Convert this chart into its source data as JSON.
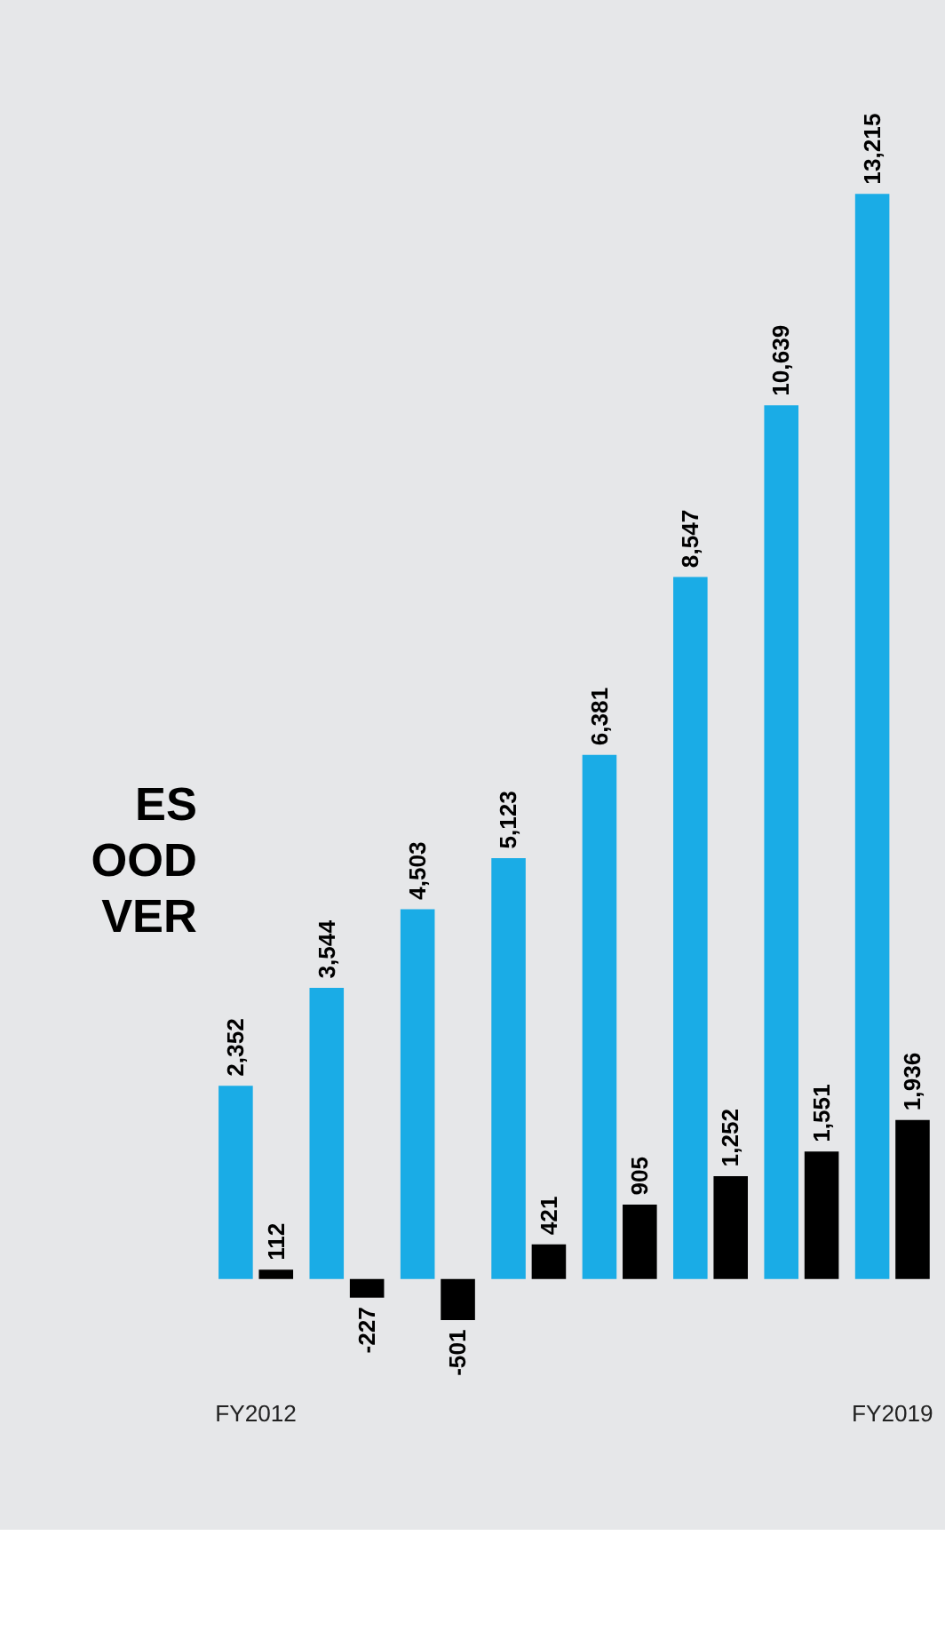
{
  "chart_data": {
    "type": "bar",
    "annotations": [
      "ES",
      "OOD",
      "VER"
    ],
    "categories": [
      "FY2012",
      null,
      null,
      null,
      null,
      null,
      null,
      "FY2019"
    ],
    "series": [
      {
        "color": "#1aace6",
        "values": [
          2352,
          3544,
          4503,
          5123,
          6381,
          8547,
          10639,
          13215
        ],
        "value_labels": [
          "2,352",
          "3,544",
          "4,503",
          "5,123",
          "6,381",
          "8,547",
          "10,639",
          "13,215"
        ]
      },
      {
        "color": "#000000",
        "values": [
          112,
          -227,
          -501,
          421,
          905,
          1252,
          1551,
          1936
        ],
        "value_labels": [
          "112",
          "-227",
          "-501",
          "421",
          "905",
          "1,252",
          "1,551",
          "1,936"
        ]
      }
    ],
    "grid": false,
    "legend": false
  }
}
